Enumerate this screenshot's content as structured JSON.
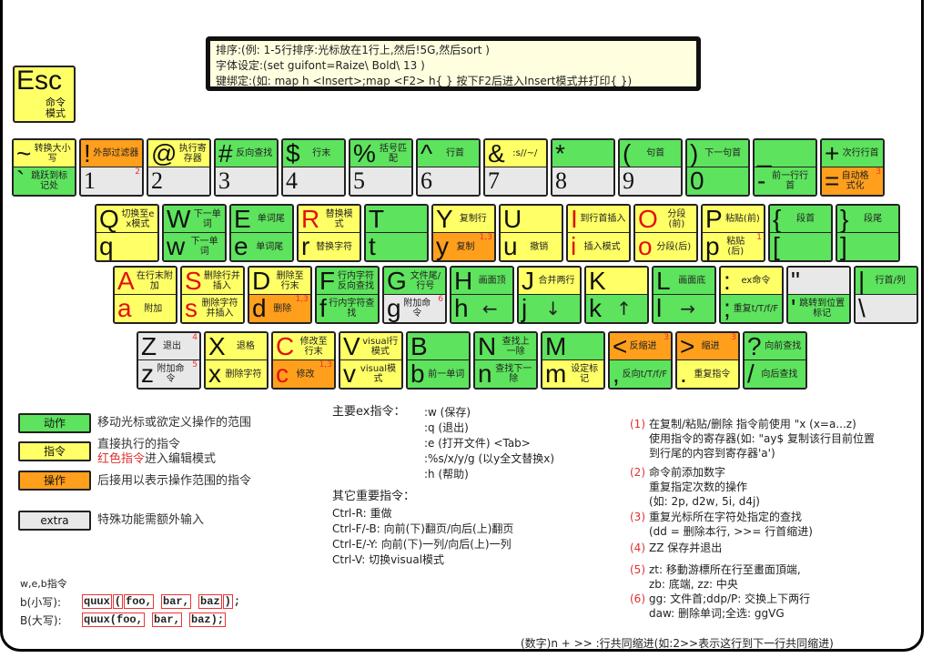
{
  "colors": {
    "action": "#5de35d",
    "command": "#ffff66",
    "operator": "#ff9f1c",
    "extra": "#e8e8e8",
    "red_text": "#e31010"
  },
  "info_box": {
    "lines": [
      "排序:(例: 1-5行排序:光标放在1行上,然后!5G,然后sort )",
      "字体设定:(set guifont=Raize\\ Bold\\ 13 )",
      "键绑定:(如: map h <Insert>;map <F2> h{ } 按下F2后进入Insert模式并打印{ })"
    ]
  },
  "esc_key": {
    "char": "Esc",
    "label": "命令模式"
  },
  "rows": [
    [
      {
        "top": {
          "ch": "~",
          "label": "转换大小写",
          "color": "command"
        },
        "bot": {
          "ch": "`",
          "label": "跳跃到标记处",
          "color": "action"
        }
      },
      {
        "top": {
          "ch": "!",
          "label": "外部过滤器",
          "color": "operator"
        },
        "bot": {
          "ch": "1",
          "label": "",
          "color": "extra",
          "sup": "2"
        }
      },
      {
        "top": {
          "ch": "@",
          "label": "执行寄存器",
          "color": "command"
        },
        "bot": {
          "ch": "2",
          "label": "",
          "color": "extra"
        }
      },
      {
        "top": {
          "ch": "#",
          "label": "反向查找",
          "color": "action"
        },
        "bot": {
          "ch": "3",
          "label": "",
          "color": "extra"
        }
      },
      {
        "top": {
          "ch": "$",
          "label": "行末",
          "color": "action"
        },
        "bot": {
          "ch": "4",
          "label": "",
          "color": "extra"
        }
      },
      {
        "top": {
          "ch": "%",
          "label": "括号匹配",
          "color": "action"
        },
        "bot": {
          "ch": "5",
          "label": "",
          "color": "extra"
        }
      },
      {
        "top": {
          "ch": "^",
          "label": "行首",
          "color": "action"
        },
        "bot": {
          "ch": "6",
          "label": "",
          "color": "extra"
        }
      },
      {
        "top": {
          "ch": "&",
          "label": ":s//~/",
          "color": "command"
        },
        "bot": {
          "ch": "7",
          "label": "",
          "color": "extra"
        }
      },
      {
        "top": {
          "ch": "*",
          "label": "",
          "color": "action"
        },
        "bot": {
          "ch": "8",
          "label": "",
          "color": "extra"
        }
      },
      {
        "top": {
          "ch": "(",
          "label": "句首",
          "color": "action"
        },
        "bot": {
          "ch": "9",
          "label": "",
          "color": "extra"
        }
      },
      {
        "top": {
          "ch": ")",
          "label": "下一句首",
          "color": "action"
        },
        "bot": {
          "ch": "0",
          "label": "",
          "color": "action"
        }
      },
      {
        "top": {
          "ch": "_",
          "label": "",
          "color": "action"
        },
        "bot": {
          "ch": "-",
          "label": "前一行行首",
          "color": "action"
        }
      },
      {
        "top": {
          "ch": "+",
          "label": "次行行首",
          "color": "action"
        },
        "bot": {
          "ch": "=",
          "label": "自动格式化",
          "color": "operator",
          "sup": "3"
        }
      }
    ],
    [
      {
        "top": {
          "ch": "Q",
          "label": "切换至ex模式",
          "color": "command"
        },
        "bot": {
          "ch": "q",
          "label": "",
          "color": "command"
        }
      },
      {
        "top": {
          "ch": "W",
          "label": "下一单词",
          "color": "action"
        },
        "bot": {
          "ch": "w",
          "label": "下一单词",
          "color": "action"
        }
      },
      {
        "top": {
          "ch": "E",
          "label": "单词尾",
          "color": "action"
        },
        "bot": {
          "ch": "e",
          "label": "单词尾",
          "color": "action"
        }
      },
      {
        "top": {
          "ch": "R",
          "label": "替换模式",
          "color": "command",
          "red": true
        },
        "bot": {
          "ch": "r",
          "label": "替换字符",
          "color": "command"
        }
      },
      {
        "top": {
          "ch": "T",
          "label": "",
          "color": "action"
        },
        "bot": {
          "ch": "t",
          "label": "",
          "color": "action"
        }
      },
      {
        "top": {
          "ch": "Y",
          "label": "复制行",
          "color": "command"
        },
        "bot": {
          "ch": "y",
          "label": "复制",
          "color": "operator",
          "sup": "1,3"
        }
      },
      {
        "top": {
          "ch": "U",
          "label": "",
          "color": "command"
        },
        "bot": {
          "ch": "u",
          "label": "撤销",
          "color": "command"
        }
      },
      {
        "top": {
          "ch": "I",
          "label": "到行首插入",
          "color": "command",
          "red": true
        },
        "bot": {
          "ch": "i",
          "label": "插入模式",
          "color": "command",
          "red": true
        }
      },
      {
        "top": {
          "ch": "O",
          "label": "分段(前)",
          "color": "command",
          "red": true
        },
        "bot": {
          "ch": "o",
          "label": "分段(后)",
          "color": "command",
          "red": true
        }
      },
      {
        "top": {
          "ch": "P",
          "label": "粘贴(前)",
          "color": "command"
        },
        "bot": {
          "ch": "p",
          "label": "粘贴(后)",
          "color": "command",
          "sup": "1"
        }
      },
      {
        "top": {
          "ch": "{",
          "label": "段首",
          "color": "action"
        },
        "bot": {
          "ch": "[",
          "label": "",
          "color": "action"
        }
      },
      {
        "top": {
          "ch": "}",
          "label": "段尾",
          "color": "action"
        },
        "bot": {
          "ch": "]",
          "label": "",
          "color": "action"
        }
      }
    ],
    [
      {
        "top": {
          "ch": "A",
          "label": "在行末附加",
          "color": "command",
          "red": true
        },
        "bot": {
          "ch": "a",
          "label": "附加",
          "color": "command",
          "red": true
        }
      },
      {
        "top": {
          "ch": "S",
          "label": "删除行并插入",
          "color": "command",
          "red": true
        },
        "bot": {
          "ch": "s",
          "label": "删除字符并插入",
          "color": "command",
          "red": true
        }
      },
      {
        "top": {
          "ch": "D",
          "label": "删除至行末",
          "color": "command"
        },
        "bot": {
          "ch": "d",
          "label": "删除",
          "color": "operator",
          "sup": "1,3"
        }
      },
      {
        "top": {
          "ch": "F",
          "label": "行内字符反向查找",
          "color": "action"
        },
        "bot": {
          "ch": "f",
          "label": "行内字符查找",
          "color": "action"
        }
      },
      {
        "top": {
          "ch": "G",
          "label": "文件尾/行号",
          "color": "action"
        },
        "bot": {
          "ch": "g",
          "label": "附加命令",
          "color": "extra",
          "sup": "6"
        }
      },
      {
        "top": {
          "ch": "H",
          "label": "画面顶",
          "color": "action"
        },
        "bot": {
          "ch": "h",
          "label": "←",
          "color": "action",
          "arrow": true
        }
      },
      {
        "top": {
          "ch": "J",
          "label": "合并两行",
          "color": "command"
        },
        "bot": {
          "ch": "j",
          "label": "↓",
          "color": "action",
          "arrow": true
        }
      },
      {
        "top": {
          "ch": "K",
          "label": "",
          "color": "command"
        },
        "bot": {
          "ch": "k",
          "label": "↑",
          "color": "action",
          "arrow": true
        }
      },
      {
        "top": {
          "ch": "L",
          "label": "画面底",
          "color": "action"
        },
        "bot": {
          "ch": "l",
          "label": "→",
          "color": "action",
          "arrow": true
        }
      },
      {
        "top": {
          "ch": ":",
          "label": "ex命令",
          "color": "command"
        },
        "bot": {
          "ch": ";",
          "label": "重复t/T/f/F",
          "color": "action"
        }
      },
      {
        "top": {
          "ch": "\"",
          "label": "",
          "color": "extra"
        },
        "bot": {
          "ch": "'",
          "label": "跳转到位置标记",
          "color": "action"
        }
      },
      {
        "top": {
          "ch": "|",
          "label": "行首/列",
          "color": "action"
        },
        "bot": {
          "ch": "\\",
          "label": "",
          "color": "extra"
        }
      }
    ],
    [
      {
        "top": {
          "ch": "Z",
          "label": "退出",
          "color": "extra",
          "sup": "4"
        },
        "bot": {
          "ch": "z",
          "label": "附加命令",
          "color": "extra",
          "sup": "5"
        }
      },
      {
        "top": {
          "ch": "X",
          "label": "退格",
          "color": "command"
        },
        "bot": {
          "ch": "x",
          "label": "删除字符",
          "color": "command"
        }
      },
      {
        "top": {
          "ch": "C",
          "label": "修改至行末",
          "color": "command",
          "red": true
        },
        "bot": {
          "ch": "c",
          "label": "修改",
          "color": "operator",
          "red": true,
          "sup": "1,3"
        }
      },
      {
        "top": {
          "ch": "V",
          "label": "visual行模式",
          "color": "command"
        },
        "bot": {
          "ch": "v",
          "label": "visual模式",
          "color": "command"
        }
      },
      {
        "top": {
          "ch": "B",
          "label": "",
          "color": "action"
        },
        "bot": {
          "ch": "b",
          "label": "前一单词",
          "color": "action"
        }
      },
      {
        "top": {
          "ch": "N",
          "label": "查找上一除",
          "color": "action"
        },
        "bot": {
          "ch": "n",
          "label": "查找下一除",
          "color": "action"
        }
      },
      {
        "top": {
          "ch": "M",
          "label": "",
          "color": "action"
        },
        "bot": {
          "ch": "m",
          "label": "设定标记",
          "color": "command"
        }
      },
      {
        "top": {
          "ch": "<",
          "label": "反缩进",
          "color": "operator",
          "sup": "3"
        },
        "bot": {
          "ch": ",",
          "label": "反向t/T/f/F",
          "color": "action"
        }
      },
      {
        "top": {
          "ch": ">",
          "label": "缩进",
          "color": "operator",
          "sup": "3"
        },
        "bot": {
          "ch": ".",
          "label": "重复指令",
          "color": "command"
        }
      },
      {
        "top": {
          "ch": "?",
          "label": "向前查找",
          "color": "action"
        },
        "bot": {
          "ch": "/",
          "label": "向后查找",
          "color": "action"
        }
      }
    ]
  ],
  "legend": [
    {
      "box": "动作",
      "color": "action",
      "text": "移动光标或欲定义操作的范围"
    },
    {
      "box": "指令",
      "color": "command",
      "text": "直接执行的指令",
      "text_red": "红色指令",
      "text_tail": "进入编辑模式"
    },
    {
      "box": "操作",
      "color": "operator",
      "text": "后接用以表示操作范围的指令"
    },
    {
      "box": "extra",
      "color": "extra",
      "text": "特殊功能需额外输入"
    }
  ],
  "ex_commands": {
    "heading": "主要ex指令：",
    "items": [
      ":w (保存)",
      ":q (退出)",
      ":e (打开文件) <Tab>",
      ":%s/x/y/g (以y全文替换x)",
      ":h (帮助)"
    ]
  },
  "other_commands": {
    "heading": "其它重要指令：",
    "items": [
      "Ctrl-R: 重做",
      "Ctrl-F/-B: 向前(下)翻页/向后(上)翻页",
      "Ctrl-E/-Y: 向前(下)一列/向后(上)一列",
      "Ctrl-V: 切换visual模式"
    ]
  },
  "notes": [
    {
      "num": "(1)",
      "lines": [
        "在复制/粘贴/删除 指令前使用 \"x (x=a...z)",
        "使用指令的寄存器(如: \"ay$ 复制该行目前位置",
        "到行尾的内容到寄存器'a')"
      ]
    },
    {
      "num": "(2)",
      "lines": [
        "命令前添加数字",
        "重复指定次数的操作",
        "(如: 2p, d2w, 5i, d4j)"
      ]
    },
    {
      "num": "(3)",
      "lines": [
        "重复光标所在字符处指定的查找",
        "(dd = 删除本行, >>= 行首缩进)"
      ]
    },
    {
      "num": "(4)",
      "lines": [
        "ZZ  保存并退出"
      ]
    },
    {
      "num": "(5)",
      "lines": [
        "zt: 移動游標所在行至畫面頂端,",
        "zb: 底端, zz: 中央"
      ]
    },
    {
      "num": "(6)",
      "lines": [
        "gg: 文件首;ddp/P: 交换上下两行",
        "daw: 删除单词;全选: ggVG"
      ]
    }
  ],
  "web_example": {
    "heading": "w,e,b指令",
    "lower_label": "b(小写):",
    "lower_segments": [
      "quux",
      "(",
      "foo,",
      "bar,",
      "baz",
      ")",
      ";"
    ],
    "upper_label": "B(大写):",
    "upper_segments": [
      "quux(foo,",
      "bar,",
      "baz);"
    ]
  },
  "footer_note": "(数字)n + >> :行共同缩进(如:2>>表示这行到下一行共同缩进)"
}
